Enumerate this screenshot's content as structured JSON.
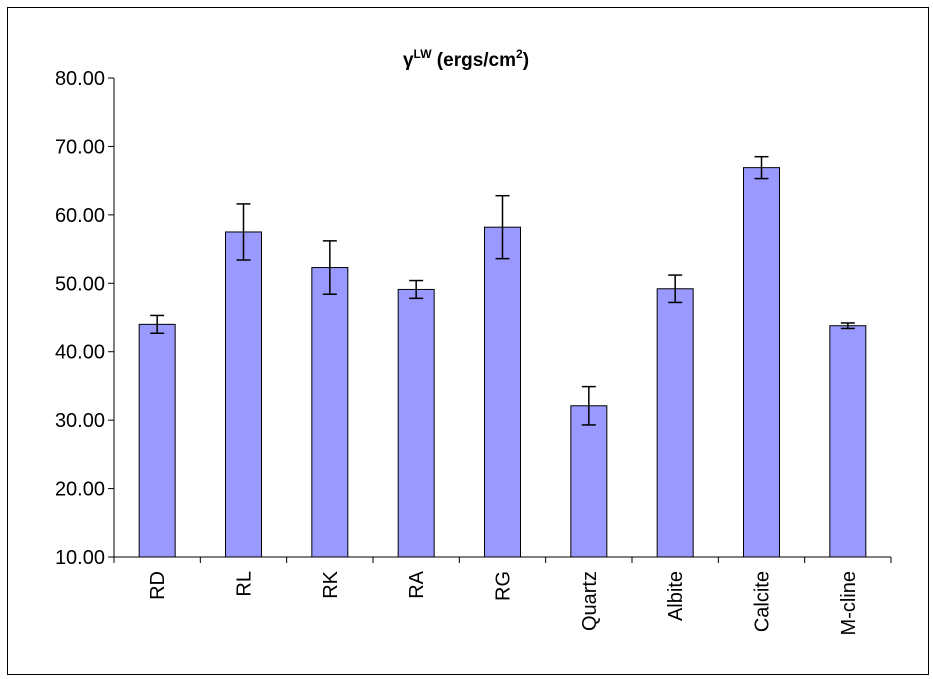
{
  "chart_data": {
    "type": "bar",
    "title": {
      "symbol": "γ",
      "superscript": "LW",
      "text": " (ergs/cm",
      "unit_superscript": "2",
      "close": ")"
    },
    "categories": [
      "RD",
      "RL",
      "RK",
      "RA",
      "RG",
      "Quartz",
      "Albite",
      "Calcite",
      "M-cline"
    ],
    "values": [
      44.0,
      57.5,
      52.3,
      49.1,
      58.2,
      32.1,
      49.2,
      66.9,
      43.8
    ],
    "error": [
      1.3,
      4.1,
      3.9,
      1.3,
      4.6,
      2.8,
      2.0,
      1.6,
      0.4
    ],
    "ylim": [
      10,
      80
    ],
    "yticks": [
      "10.00",
      "20.00",
      "30.00",
      "40.00",
      "50.00",
      "60.00",
      "70.00",
      "80.00"
    ],
    "xlabel": "",
    "ylabel": "",
    "grid": false,
    "legend": "none",
    "bar_color": "#9999ff"
  }
}
